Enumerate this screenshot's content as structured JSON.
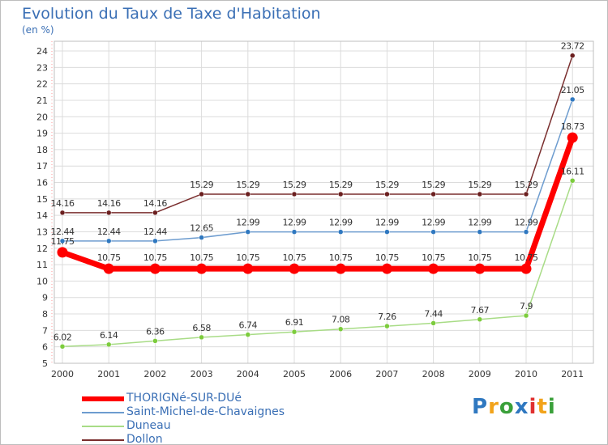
{
  "chart_data": {
    "type": "line",
    "title": "Evolution du Taux de Taxe d'Habitation",
    "ylabel": "(en %)",
    "xlabel": "",
    "ylim": [
      5,
      24
    ],
    "yticks": [
      "5",
      "6",
      "7",
      "8",
      "9",
      "10",
      "11",
      "12",
      "13",
      "14",
      "15",
      "16",
      "17",
      "18",
      "19",
      "20",
      "21",
      "22",
      "23",
      "24"
    ],
    "categories": [
      "2000",
      "2001",
      "2002",
      "2003",
      "2004",
      "2005",
      "2006",
      "2007",
      "2008",
      "2009",
      "2010",
      "2011"
    ],
    "series": [
      {
        "name": "Dollon",
        "color": "#7a2e2e",
        "marker": "#6b1f1f",
        "values": [
          14.16,
          14.16,
          14.16,
          15.29,
          15.29,
          15.29,
          15.29,
          15.29,
          15.29,
          15.29,
          15.29,
          23.72
        ],
        "labels": [
          "14.16",
          "14.16",
          "14.16",
          "15.29",
          "15.29",
          "15.29",
          "15.29",
          "15.29",
          "15.29",
          "15.29",
          "15.29",
          "23.72"
        ]
      },
      {
        "name": "Saint-Michel-de-Chavaignes",
        "color": "#6d9ccf",
        "marker": "#2f78c0",
        "values": [
          12.44,
          12.44,
          12.44,
          12.65,
          12.99,
          12.99,
          12.99,
          12.99,
          12.99,
          12.99,
          12.99,
          21.05
        ],
        "labels": [
          "12.44",
          "12.44",
          "12.44",
          "12.65",
          "12.99",
          "12.99",
          "12.99",
          "12.99",
          "12.99",
          "12.99",
          "12.99",
          "21.05"
        ]
      },
      {
        "name": "Duneau",
        "color": "#a8dc86",
        "marker": "#7ccc3c",
        "values": [
          6.02,
          6.14,
          6.36,
          6.58,
          6.74,
          6.91,
          7.08,
          7.26,
          7.44,
          7.67,
          7.9,
          16.11
        ],
        "labels": [
          "6.02",
          "6.14",
          "6.36",
          "6.58",
          "6.74",
          "6.91",
          "7.08",
          "7.26",
          "7.44",
          "7.67",
          "7.9",
          "16.11"
        ]
      },
      {
        "name": "THORIGNé-SUR-DUé",
        "color": "#ff0000",
        "marker": "#ff0000",
        "values": [
          11.75,
          10.75,
          10.75,
          10.75,
          10.75,
          10.75,
          10.75,
          10.75,
          10.75,
          10.75,
          10.75,
          18.73
        ],
        "labels": [
          "11.75",
          "10.75",
          "10.75",
          "10.75",
          "10.75",
          "10.75",
          "10.75",
          "10.75",
          "10.75",
          "10.75",
          "10.75",
          "18.73"
        ]
      }
    ],
    "legend": [
      "THORIGNé-SUR-DUé",
      "Saint-Michel-de-Chavaignes",
      "Duneau",
      "Dollon"
    ],
    "legend_position": "bottom-left",
    "grid": true
  },
  "logo": {
    "letters": [
      "P",
      "r",
      "o",
      "x",
      "i",
      "t",
      "i"
    ],
    "colors": [
      "#2f78c0",
      "#f2a31a",
      "#3aa03a",
      "#2f78c0",
      "#e03030",
      "#f2a31a",
      "#3aa03a"
    ]
  }
}
